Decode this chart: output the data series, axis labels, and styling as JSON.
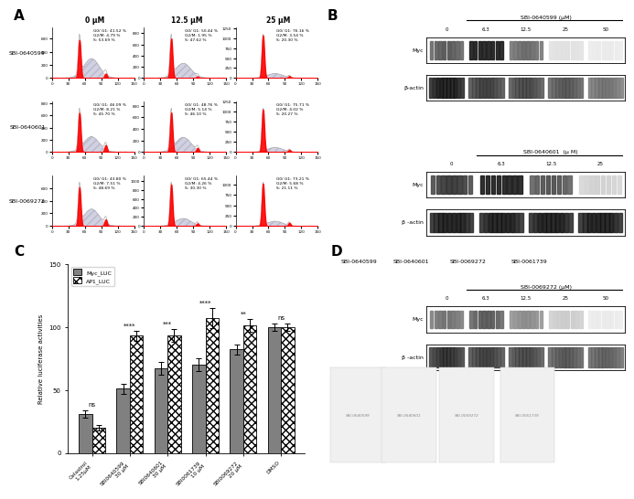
{
  "flow_rows": [
    "SBI-0640599",
    "SBI-0640601",
    "SBI-0069272"
  ],
  "flow_cols": [
    "0 μM",
    "12.5 μM",
    "25 μM"
  ],
  "flow_stats": [
    [
      {
        "g01": "41.52",
        "g2m": "4.79",
        "s": "53.69"
      },
      {
        "g01": "50.44",
        "g2m": "1.95",
        "s": "47.62"
      },
      {
        "g01": "76.16",
        "g2m": "3.54",
        "s": "20.30"
      }
    ],
    [
      {
        "g01": "46.09",
        "g2m": "8.21",
        "s": "45.70"
      },
      {
        "g01": "48.76",
        "g2m": "5.14",
        "s": "46.10"
      },
      {
        "g01": "75.71",
        "g2m": "4.02",
        "s": "20.27"
      }
    ],
    [
      {
        "g01": "43.80",
        "g2m": "7.51",
        "s": "48.69"
      },
      {
        "g01": "65.44",
        "g2m": "4.26",
        "s": "30.30"
      },
      {
        "g01": "73.21",
        "g2m": "5.68",
        "s": "21.11"
      }
    ]
  ],
  "western_blots": [
    {
      "compound": "SBI-0640599 (μM)",
      "doses": [
        "0",
        "6.3",
        "12.5",
        "25",
        "50"
      ],
      "myc_intensities": [
        0.65,
        1.0,
        0.58,
        0.12,
        0.08
      ],
      "actin_intensities": [
        1.0,
        0.82,
        0.78,
        0.72,
        0.6
      ]
    },
    {
      "compound": "SBI-0640601  (μ M)",
      "doses": [
        "0",
        "6.3",
        "12.5",
        "25"
      ],
      "myc_intensities": [
        0.78,
        1.0,
        0.68,
        0.18
      ],
      "actin_intensities": [
        1.0,
        1.0,
        1.0,
        1.0
      ]
    },
    {
      "compound": "SBI-0069272 (μM)",
      "doses": [
        "0",
        "6.3",
        "12.5",
        "25",
        "50"
      ],
      "myc_intensities": [
        0.55,
        0.65,
        0.45,
        0.2,
        0.08
      ],
      "actin_intensities": [
        0.88,
        0.82,
        0.78,
        0.72,
        0.68
      ]
    }
  ],
  "bar_categories": [
    "Celastrol\n1.25μM",
    "SBI0640599\n30 μM",
    "SBI0640601\n30 μM",
    "SBI0061739\n10 μM",
    "SBI0069272\n20 μM",
    "DMSO"
  ],
  "myc_luc_values": [
    31,
    51,
    67,
    70,
    82,
    100
  ],
  "myc_luc_errors": [
    3,
    4,
    5,
    5,
    4,
    3
  ],
  "ap1_luc_values": [
    20,
    93,
    93,
    107,
    101,
    100
  ],
  "ap1_luc_errors": [
    2,
    4,
    5,
    8,
    5,
    3
  ],
  "significance": [
    "ns",
    "****",
    "***",
    "****",
    "**",
    "ns"
  ],
  "bar_color_myc": "#808080",
  "ylabel_C": "Relative luciferase activities",
  "ylim_C": [
    0,
    150
  ],
  "compound_names_D": [
    "SBI-0640599",
    "SBI-0640601",
    "SBI-0069272",
    "SBI-0061739"
  ],
  "background_color": "#ffffff"
}
